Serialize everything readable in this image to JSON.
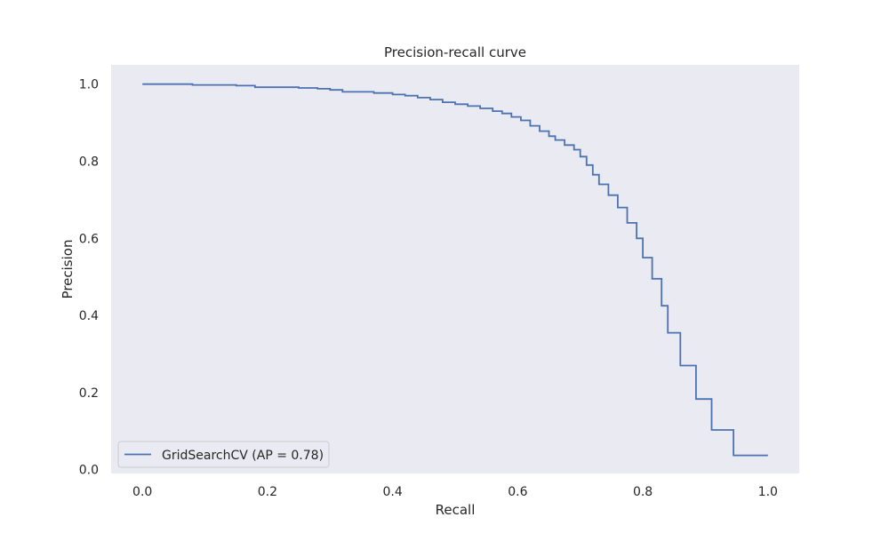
{
  "chart_data": {
    "type": "line",
    "title": "Precision-recall curve",
    "xlabel": "Recall",
    "ylabel": "Precision",
    "xlim": [
      -0.05,
      1.05
    ],
    "ylim": [
      -0.01,
      1.05
    ],
    "x_ticks": [
      "0.0",
      "0.2",
      "0.4",
      "0.6",
      "0.8",
      "1.0"
    ],
    "y_ticks": [
      "0.0",
      "0.2",
      "0.4",
      "0.6",
      "0.8",
      "1.0"
    ],
    "grid": false,
    "legend_position": "lower-left",
    "drawstyle": "steps-post",
    "series": [
      {
        "name": "GridSearchCV (AP = 0.78)",
        "color": "#4c72b0",
        "x": [
          0.0,
          0.08,
          0.15,
          0.18,
          0.25,
          0.28,
          0.3,
          0.32,
          0.37,
          0.4,
          0.42,
          0.44,
          0.46,
          0.48,
          0.5,
          0.52,
          0.54,
          0.56,
          0.575,
          0.59,
          0.605,
          0.62,
          0.635,
          0.65,
          0.66,
          0.675,
          0.69,
          0.7,
          0.71,
          0.72,
          0.73,
          0.745,
          0.76,
          0.775,
          0.79,
          0.8,
          0.815,
          0.83,
          0.84,
          0.86,
          0.885,
          0.91,
          0.945,
          1.0
        ],
        "y": [
          1.0,
          0.998,
          0.996,
          0.992,
          0.99,
          0.988,
          0.985,
          0.98,
          0.977,
          0.973,
          0.97,
          0.965,
          0.96,
          0.953,
          0.948,
          0.943,
          0.937,
          0.93,
          0.924,
          0.915,
          0.906,
          0.892,
          0.878,
          0.865,
          0.855,
          0.842,
          0.83,
          0.812,
          0.79,
          0.765,
          0.74,
          0.712,
          0.68,
          0.64,
          0.6,
          0.55,
          0.495,
          0.425,
          0.355,
          0.27,
          0.183,
          0.103,
          0.037,
          0.037
        ]
      }
    ]
  }
}
